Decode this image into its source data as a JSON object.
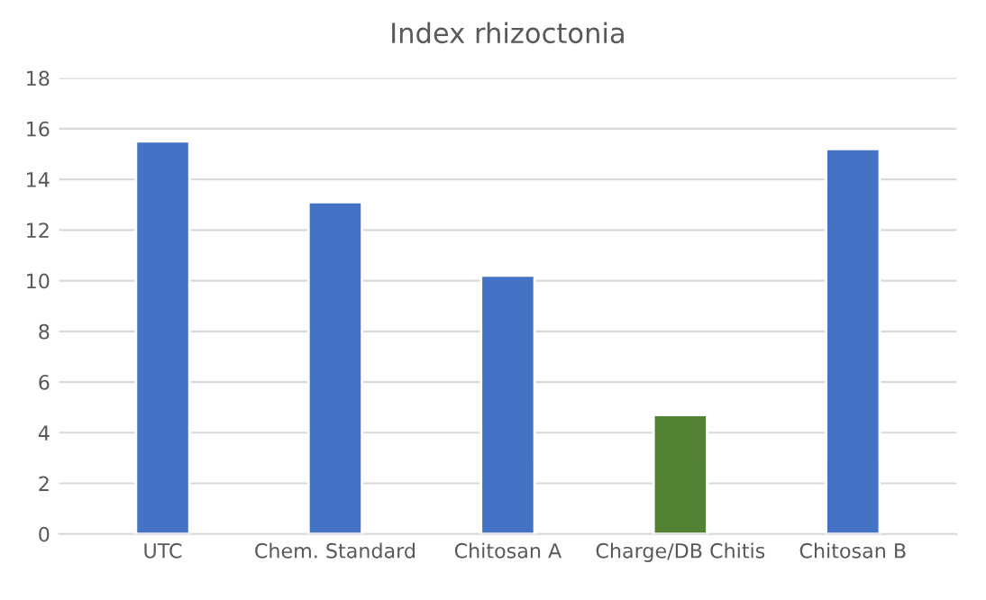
{
  "chart_data": {
    "type": "bar",
    "title": "Index rhizoctonia",
    "categories": [
      "UTC",
      "Chem. Standard",
      "Chitosan A",
      "Charge/DB Chitis",
      "Chitosan B"
    ],
    "values": [
      15.5,
      13.1,
      10.2,
      4.7,
      15.2
    ],
    "colors": [
      "#4472c4",
      "#4472c4",
      "#4472c4",
      "#548235",
      "#4472c4"
    ],
    "ylim": [
      0,
      18
    ],
    "yticks": [
      0,
      2,
      4,
      6,
      8,
      10,
      12,
      14,
      16,
      18
    ],
    "grid": "y"
  }
}
